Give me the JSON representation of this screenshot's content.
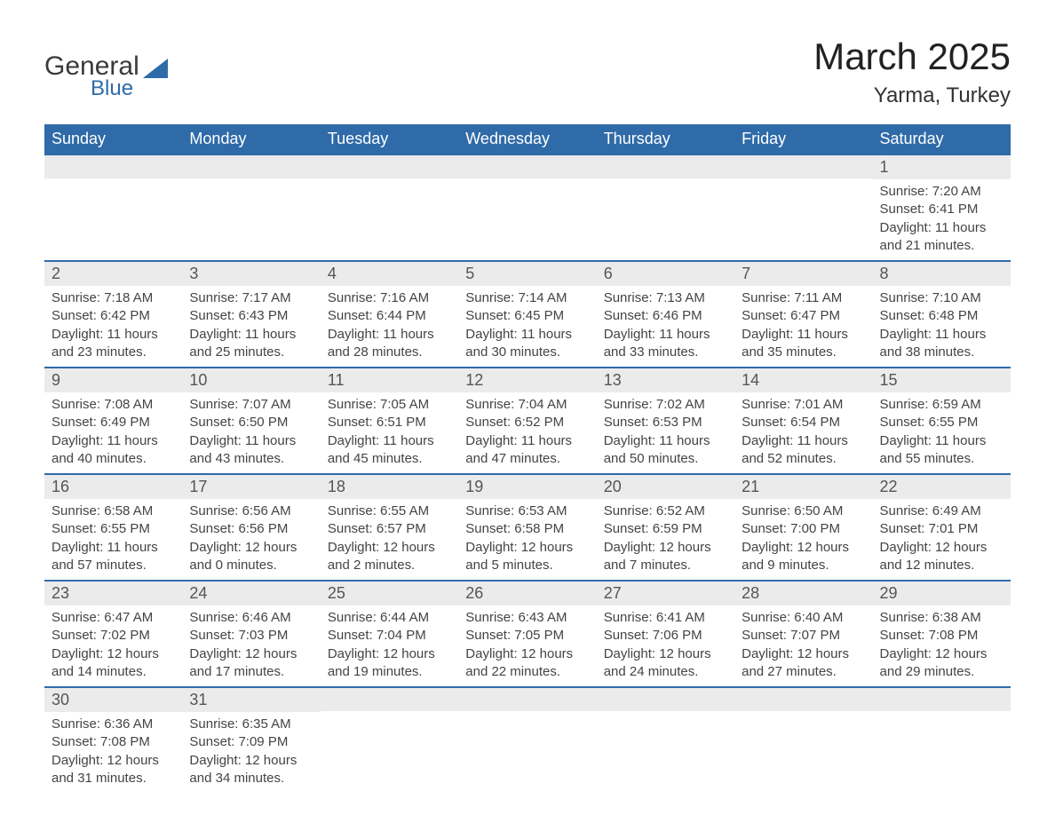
{
  "logo": {
    "general": "General",
    "blue": "Blue",
    "shape_color": "#2f6ba8"
  },
  "title": "March 2025",
  "location": "Yarma, Turkey",
  "colors": {
    "header_bg": "#2f6ba8",
    "header_text": "#ffffff",
    "row_separator": "#2f6ba8",
    "daynum_bg": "#ebebeb",
    "text": "#444444",
    "background": "#ffffff"
  },
  "fonts": {
    "title_size_pt": 32,
    "location_size_pt": 18,
    "header_size_pt": 14,
    "body_size_pt": 11
  },
  "day_headers": [
    "Sunday",
    "Monday",
    "Tuesday",
    "Wednesday",
    "Thursday",
    "Friday",
    "Saturday"
  ],
  "labels": {
    "sunrise": "Sunrise: ",
    "sunset": "Sunset: ",
    "daylight": "Daylight: "
  },
  "weeks": [
    [
      null,
      null,
      null,
      null,
      null,
      null,
      {
        "n": "1",
        "sr": "7:20 AM",
        "ss": "6:41 PM",
        "dl": "11 hours and 21 minutes."
      }
    ],
    [
      {
        "n": "2",
        "sr": "7:18 AM",
        "ss": "6:42 PM",
        "dl": "11 hours and 23 minutes."
      },
      {
        "n": "3",
        "sr": "7:17 AM",
        "ss": "6:43 PM",
        "dl": "11 hours and 25 minutes."
      },
      {
        "n": "4",
        "sr": "7:16 AM",
        "ss": "6:44 PM",
        "dl": "11 hours and 28 minutes."
      },
      {
        "n": "5",
        "sr": "7:14 AM",
        "ss": "6:45 PM",
        "dl": "11 hours and 30 minutes."
      },
      {
        "n": "6",
        "sr": "7:13 AM",
        "ss": "6:46 PM",
        "dl": "11 hours and 33 minutes."
      },
      {
        "n": "7",
        "sr": "7:11 AM",
        "ss": "6:47 PM",
        "dl": "11 hours and 35 minutes."
      },
      {
        "n": "8",
        "sr": "7:10 AM",
        "ss": "6:48 PM",
        "dl": "11 hours and 38 minutes."
      }
    ],
    [
      {
        "n": "9",
        "sr": "7:08 AM",
        "ss": "6:49 PM",
        "dl": "11 hours and 40 minutes."
      },
      {
        "n": "10",
        "sr": "7:07 AM",
        "ss": "6:50 PM",
        "dl": "11 hours and 43 minutes."
      },
      {
        "n": "11",
        "sr": "7:05 AM",
        "ss": "6:51 PM",
        "dl": "11 hours and 45 minutes."
      },
      {
        "n": "12",
        "sr": "7:04 AM",
        "ss": "6:52 PM",
        "dl": "11 hours and 47 minutes."
      },
      {
        "n": "13",
        "sr": "7:02 AM",
        "ss": "6:53 PM",
        "dl": "11 hours and 50 minutes."
      },
      {
        "n": "14",
        "sr": "7:01 AM",
        "ss": "6:54 PM",
        "dl": "11 hours and 52 minutes."
      },
      {
        "n": "15",
        "sr": "6:59 AM",
        "ss": "6:55 PM",
        "dl": "11 hours and 55 minutes."
      }
    ],
    [
      {
        "n": "16",
        "sr": "6:58 AM",
        "ss": "6:55 PM",
        "dl": "11 hours and 57 minutes."
      },
      {
        "n": "17",
        "sr": "6:56 AM",
        "ss": "6:56 PM",
        "dl": "12 hours and 0 minutes."
      },
      {
        "n": "18",
        "sr": "6:55 AM",
        "ss": "6:57 PM",
        "dl": "12 hours and 2 minutes."
      },
      {
        "n": "19",
        "sr": "6:53 AM",
        "ss": "6:58 PM",
        "dl": "12 hours and 5 minutes."
      },
      {
        "n": "20",
        "sr": "6:52 AM",
        "ss": "6:59 PM",
        "dl": "12 hours and 7 minutes."
      },
      {
        "n": "21",
        "sr": "6:50 AM",
        "ss": "7:00 PM",
        "dl": "12 hours and 9 minutes."
      },
      {
        "n": "22",
        "sr": "6:49 AM",
        "ss": "7:01 PM",
        "dl": "12 hours and 12 minutes."
      }
    ],
    [
      {
        "n": "23",
        "sr": "6:47 AM",
        "ss": "7:02 PM",
        "dl": "12 hours and 14 minutes."
      },
      {
        "n": "24",
        "sr": "6:46 AM",
        "ss": "7:03 PM",
        "dl": "12 hours and 17 minutes."
      },
      {
        "n": "25",
        "sr": "6:44 AM",
        "ss": "7:04 PM",
        "dl": "12 hours and 19 minutes."
      },
      {
        "n": "26",
        "sr": "6:43 AM",
        "ss": "7:05 PM",
        "dl": "12 hours and 22 minutes."
      },
      {
        "n": "27",
        "sr": "6:41 AM",
        "ss": "7:06 PM",
        "dl": "12 hours and 24 minutes."
      },
      {
        "n": "28",
        "sr": "6:40 AM",
        "ss": "7:07 PM",
        "dl": "12 hours and 27 minutes."
      },
      {
        "n": "29",
        "sr": "6:38 AM",
        "ss": "7:08 PM",
        "dl": "12 hours and 29 minutes."
      }
    ],
    [
      {
        "n": "30",
        "sr": "6:36 AM",
        "ss": "7:08 PM",
        "dl": "12 hours and 31 minutes."
      },
      {
        "n": "31",
        "sr": "6:35 AM",
        "ss": "7:09 PM",
        "dl": "12 hours and 34 minutes."
      },
      null,
      null,
      null,
      null,
      null
    ]
  ]
}
